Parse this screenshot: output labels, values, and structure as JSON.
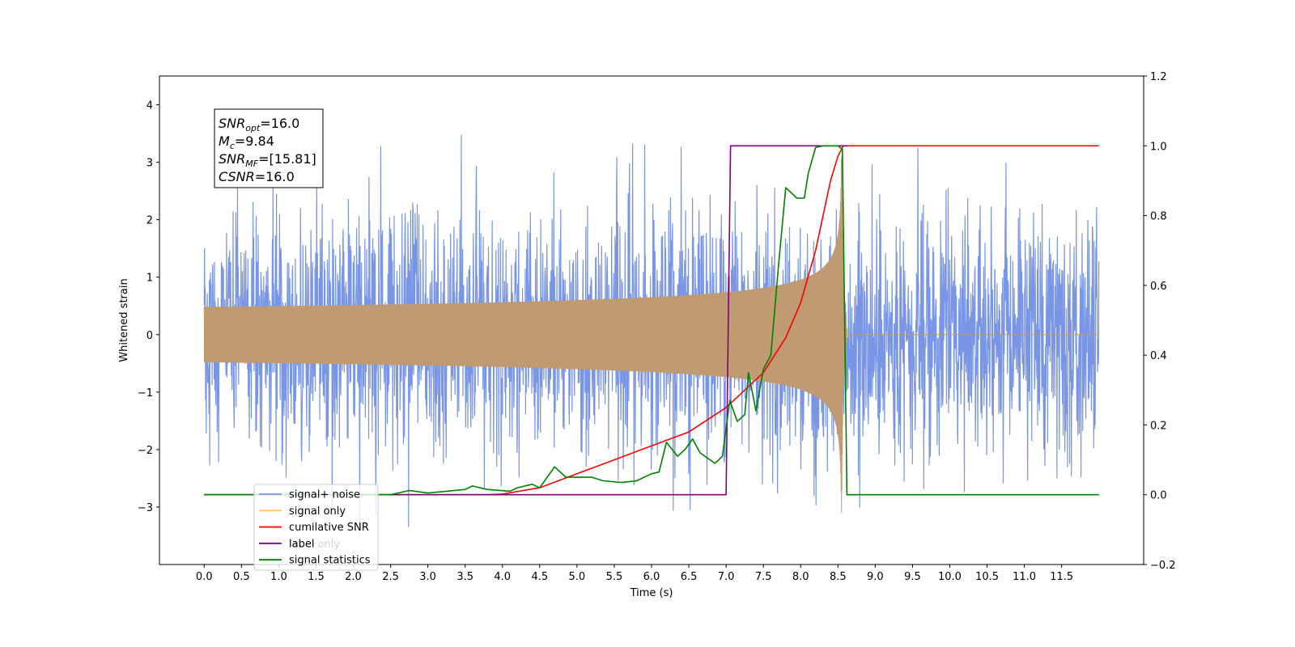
{
  "chart_data": {
    "type": "line",
    "xlabel": "Time (s)",
    "ylabel": "Whitened strain",
    "xlim": [
      -0.6,
      12.6
    ],
    "ylim": [
      -4.0,
      4.5
    ],
    "y2lim": [
      -0.2,
      1.2
    ],
    "x_ticks": [
      "0.0",
      "0.5",
      "1.0",
      "1.5",
      "2.0",
      "2.5",
      "3.0",
      "3.5",
      "4.0",
      "4.5",
      "5.0",
      "5.5",
      "6.0",
      "6.5",
      "7.0",
      "7.5",
      "8.0",
      "8.5",
      "9.0",
      "9.5",
      "10.0",
      "10.5",
      "11.0",
      "11.5"
    ],
    "y_ticks": [
      "4",
      "3",
      "2",
      "1",
      "0",
      "−1",
      "−2",
      "−3"
    ],
    "y2_ticks": [
      "1.2",
      "1.0",
      "0.8",
      "0.6",
      "0.4",
      "0.2",
      "0.0",
      "−0.2"
    ],
    "info_box": [
      {
        "base": "SNR",
        "sub": "opt",
        "value": "=16.0"
      },
      {
        "base": "M",
        "sub": "c",
        "value": "=9.84"
      },
      {
        "base": "SNR",
        "sub": "MF",
        "value": "=[15.81]"
      },
      {
        "base": "CSNR",
        "sub": "",
        "value": "=16.0"
      }
    ],
    "legend": {
      "placement": "lower-left",
      "entries": [
        {
          "label": "signal+ noise",
          "color": "#7895e6"
        },
        {
          "label": "signal only",
          "color": "#fcc373"
        },
        {
          "label": "cumilative SNR",
          "color": "#ff0000"
        },
        {
          "label": "label",
          "color": "#800080"
        },
        {
          "label": "signal statistics",
          "color": "#008000"
        }
      ],
      "hidden_entry": "label only"
    },
    "series": [
      {
        "name": "signal+ noise",
        "axis": "left",
        "kind": "noise",
        "t_start": 0.0,
        "t_end": 12.0,
        "std": 1.05,
        "color": "#7895e6"
      },
      {
        "name": "signal only",
        "axis": "left",
        "kind": "chirp",
        "t_start": 0.0,
        "t_merge": 8.55,
        "t_end": 8.62,
        "peak_amplitude": 3.1,
        "color": "#c09a70"
      },
      {
        "name": "cumilative SNR",
        "axis": "right",
        "color": "#ff0000",
        "points": [
          [
            0.0,
            0.0
          ],
          [
            3.8,
            0.0
          ],
          [
            4.0,
            0.002
          ],
          [
            4.5,
            0.02
          ],
          [
            5.0,
            0.06
          ],
          [
            5.5,
            0.1
          ],
          [
            6.0,
            0.14
          ],
          [
            6.5,
            0.18
          ],
          [
            7.0,
            0.25
          ],
          [
            7.5,
            0.35
          ],
          [
            7.8,
            0.45
          ],
          [
            8.0,
            0.55
          ],
          [
            8.2,
            0.7
          ],
          [
            8.3,
            0.8
          ],
          [
            8.4,
            0.9
          ],
          [
            8.5,
            0.97
          ],
          [
            8.57,
            1.0
          ],
          [
            12.0,
            1.0
          ]
        ]
      },
      {
        "name": "label",
        "axis": "right",
        "color": "#800080",
        "points": [
          [
            0.0,
            0.0
          ],
          [
            7.0,
            0.0
          ],
          [
            7.06,
            1.0
          ],
          [
            8.57,
            1.0
          ],
          [
            8.63,
            1.0
          ]
        ]
      },
      {
        "name": "signal statistics",
        "axis": "right",
        "color": "#008000",
        "points": [
          [
            0.0,
            0.0
          ],
          [
            2.5,
            0.0
          ],
          [
            2.75,
            0.012
          ],
          [
            3.0,
            0.005
          ],
          [
            3.25,
            0.01
          ],
          [
            3.5,
            0.015
          ],
          [
            3.6,
            0.025
          ],
          [
            3.7,
            0.02
          ],
          [
            3.8,
            0.015
          ],
          [
            4.1,
            0.01
          ],
          [
            4.2,
            0.02
          ],
          [
            4.4,
            0.03
          ],
          [
            4.5,
            0.02
          ],
          [
            4.7,
            0.08
          ],
          [
            4.85,
            0.05
          ],
          [
            5.0,
            0.05
          ],
          [
            5.2,
            0.05
          ],
          [
            5.35,
            0.04
          ],
          [
            5.6,
            0.035
          ],
          [
            5.8,
            0.04
          ],
          [
            6.0,
            0.06
          ],
          [
            6.1,
            0.065
          ],
          [
            6.2,
            0.15
          ],
          [
            6.35,
            0.11
          ],
          [
            6.45,
            0.13
          ],
          [
            6.55,
            0.16
          ],
          [
            6.65,
            0.12
          ],
          [
            6.85,
            0.09
          ],
          [
            6.95,
            0.11
          ],
          [
            7.05,
            0.27
          ],
          [
            7.15,
            0.21
          ],
          [
            7.25,
            0.23
          ],
          [
            7.3,
            0.35
          ],
          [
            7.4,
            0.24
          ],
          [
            7.5,
            0.36
          ],
          [
            7.6,
            0.4
          ],
          [
            7.7,
            0.65
          ],
          [
            7.8,
            0.88
          ],
          [
            7.95,
            0.85
          ],
          [
            8.05,
            0.85
          ],
          [
            8.1,
            0.92
          ],
          [
            8.2,
            0.995
          ],
          [
            8.3,
            1.0
          ],
          [
            8.5,
            1.0
          ],
          [
            8.56,
            0.99
          ],
          [
            8.62,
            0.0
          ],
          [
            12.0,
            0.0
          ]
        ]
      }
    ]
  }
}
